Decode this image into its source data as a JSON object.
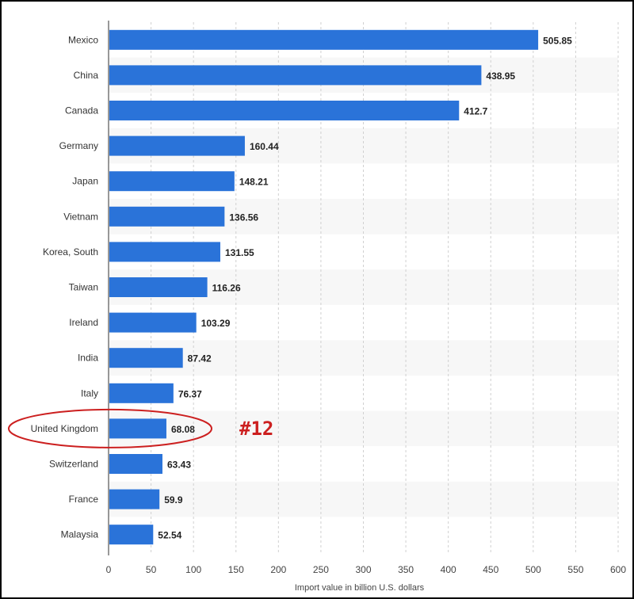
{
  "chart_data": {
    "type": "bar",
    "orientation": "horizontal",
    "categories": [
      "Mexico",
      "China",
      "Canada",
      "Germany",
      "Japan",
      "Vietnam",
      "Korea, South",
      "Taiwan",
      "Ireland",
      "India",
      "Italy",
      "United Kingdom",
      "Switzerland",
      "France",
      "Malaysia"
    ],
    "values": [
      505.85,
      438.95,
      412.7,
      160.44,
      148.21,
      136.56,
      131.55,
      116.26,
      103.29,
      87.42,
      76.37,
      68.08,
      63.43,
      59.9,
      52.54
    ],
    "value_labels": [
      "505.85",
      "438.95",
      "412.7",
      "160.44",
      "148.21",
      "136.56",
      "131.55",
      "116.26",
      "103.29",
      "87.42",
      "76.37",
      "68.08",
      "63.43",
      "59.9",
      "52.54"
    ],
    "xlabel": "Import value in billion U.S. dollars",
    "ylabel": "",
    "xlim": [
      0,
      600
    ],
    "xticks": [
      "0",
      "50",
      "100",
      "150",
      "200",
      "250",
      "300",
      "350",
      "400",
      "450",
      "500",
      "550",
      "600"
    ],
    "grid": "vertical dashed",
    "bar_color": "#2a73d9",
    "stripe_color": "#f7f7f7",
    "annotation": {
      "text": "#12",
      "highlighted_category": "United Kingdom",
      "color": "#cc1f1f"
    }
  }
}
